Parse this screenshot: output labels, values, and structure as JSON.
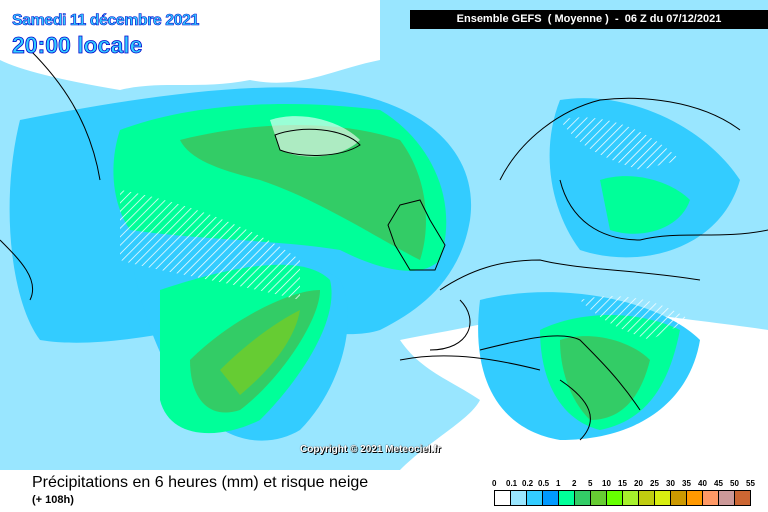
{
  "title": {
    "date": "Samedi 11 décembre 2021",
    "time": "20:00 locale"
  },
  "header": "Ensemble GEFS  ( Moyenne )  -  06 Z du 07/12/2021",
  "copyright": "Copyright © 2021 Meteociel.fr",
  "caption": "Précipitations en 6 heures (mm) et risque neige",
  "lead_time": "(+ 108h)",
  "legend": {
    "labels": [
      "0",
      "0.1",
      "0.2",
      "0.5",
      "1",
      "2",
      "5",
      "10",
      "15",
      "20",
      "25",
      "30",
      "35",
      "40",
      "45",
      "50",
      "55"
    ],
    "colors": [
      "#ffffff",
      "#99e6ff",
      "#33ccff",
      "#0099ff",
      "#00ff99",
      "#33cc66",
      "#66cc33",
      "#66ff00",
      "#a6f02c",
      "#bfcc10",
      "#d8ee10",
      "#cc9900",
      "#ff9900",
      "#ff9966",
      "#cc9999",
      "#cc6633",
      "#cc3333"
    ]
  }
}
